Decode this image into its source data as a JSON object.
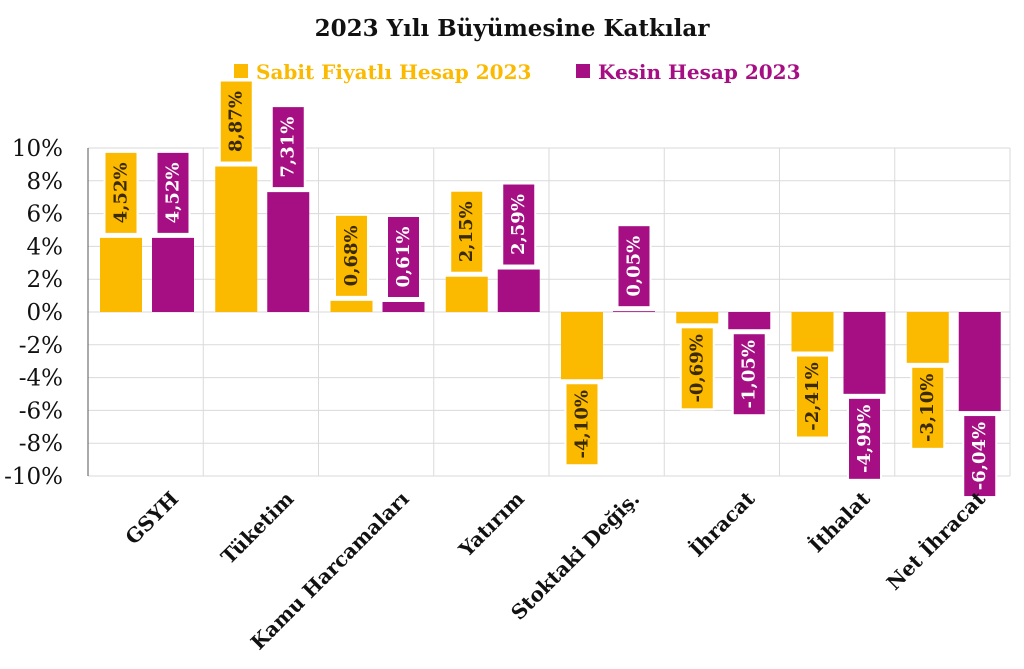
{
  "chart_data": {
    "type": "bar",
    "title": "2023 Yılı Büyümesine Katkılar",
    "categories": [
      "GSYH",
      "Tüketim",
      "Kamu Harcamaları",
      "Yatırım",
      "Stoktaki Değiş.",
      "İhracat",
      "İthalat",
      "Net İhracat"
    ],
    "series": [
      {
        "name": "Sabit Fiyatlı Hesap 2023",
        "color": "#FBB900",
        "values": [
          4.52,
          8.87,
          0.68,
          2.15,
          -4.1,
          -0.69,
          -2.41,
          -3.1
        ],
        "labels": [
          "4,52%",
          "8,87%",
          "0,68%",
          "2,15%",
          "-4,10%",
          "-0,69%",
          "-2,41%",
          "-3,10%"
        ]
      },
      {
        "name": "Kesin Hesap 2023",
        "color": "#A50F83",
        "values": [
          4.52,
          7.31,
          0.61,
          2.59,
          0.05,
          -1.05,
          -4.99,
          -6.04
        ],
        "labels": [
          "4,52%",
          "7,31%",
          "0,61%",
          "2,59%",
          "0,05%",
          "-1,05%",
          "-4,99%",
          "-6,04%"
        ]
      }
    ],
    "ylim": [
      -10,
      10
    ],
    "yticks": [
      10,
      8,
      6,
      4,
      2,
      0,
      -2,
      -4,
      -6,
      -8,
      -10
    ],
    "ytick_labels": [
      "10%",
      "8%",
      "6%",
      "4%",
      "2%",
      "0%",
      "-2%",
      "-4%",
      "-6%",
      "-8%",
      "-10%"
    ],
    "xlabel": "",
    "ylabel": "",
    "grid": true,
    "legend_position": "top"
  }
}
